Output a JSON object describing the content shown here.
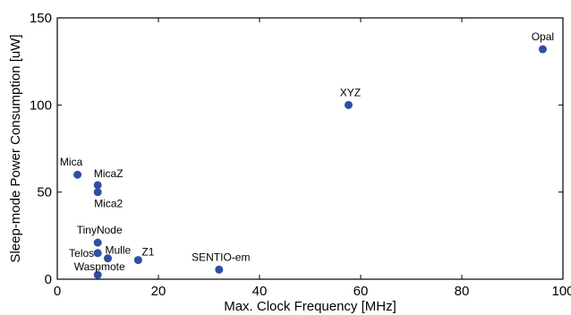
{
  "chart_data": {
    "type": "scatter",
    "title": "",
    "xlabel": "Max. Clock Frequency [MHz]",
    "ylabel": "Sleep-mode Power Consumption [uW]",
    "xlim": [
      0,
      100
    ],
    "ylim": [
      0,
      150
    ],
    "xticks": [
      "0",
      "20",
      "40",
      "60",
      "80",
      "100"
    ],
    "yticks": [
      "0",
      "50",
      "100",
      "150"
    ],
    "grid": false,
    "marker_color": "#2e4fa3",
    "points": [
      {
        "label": "Opal",
        "x": 96,
        "y": 132
      },
      {
        "label": "XYZ",
        "x": 57.6,
        "y": 100
      },
      {
        "label": "Mica",
        "x": 4,
        "y": 60
      },
      {
        "label": "MicaZ",
        "x": 8,
        "y": 54
      },
      {
        "label": "Mica2",
        "x": 8,
        "y": 50
      },
      {
        "label": "TinyNode",
        "x": 8,
        "y": 21
      },
      {
        "label": "Telos",
        "x": 8,
        "y": 15
      },
      {
        "label": "Mulle",
        "x": 10,
        "y": 12
      },
      {
        "label": "Z1",
        "x": 16,
        "y": 11
      },
      {
        "label": "SENTIO-em",
        "x": 32,
        "y": 5.5
      },
      {
        "label": "Waspmote",
        "x": 8,
        "y": 2.5
      }
    ]
  }
}
